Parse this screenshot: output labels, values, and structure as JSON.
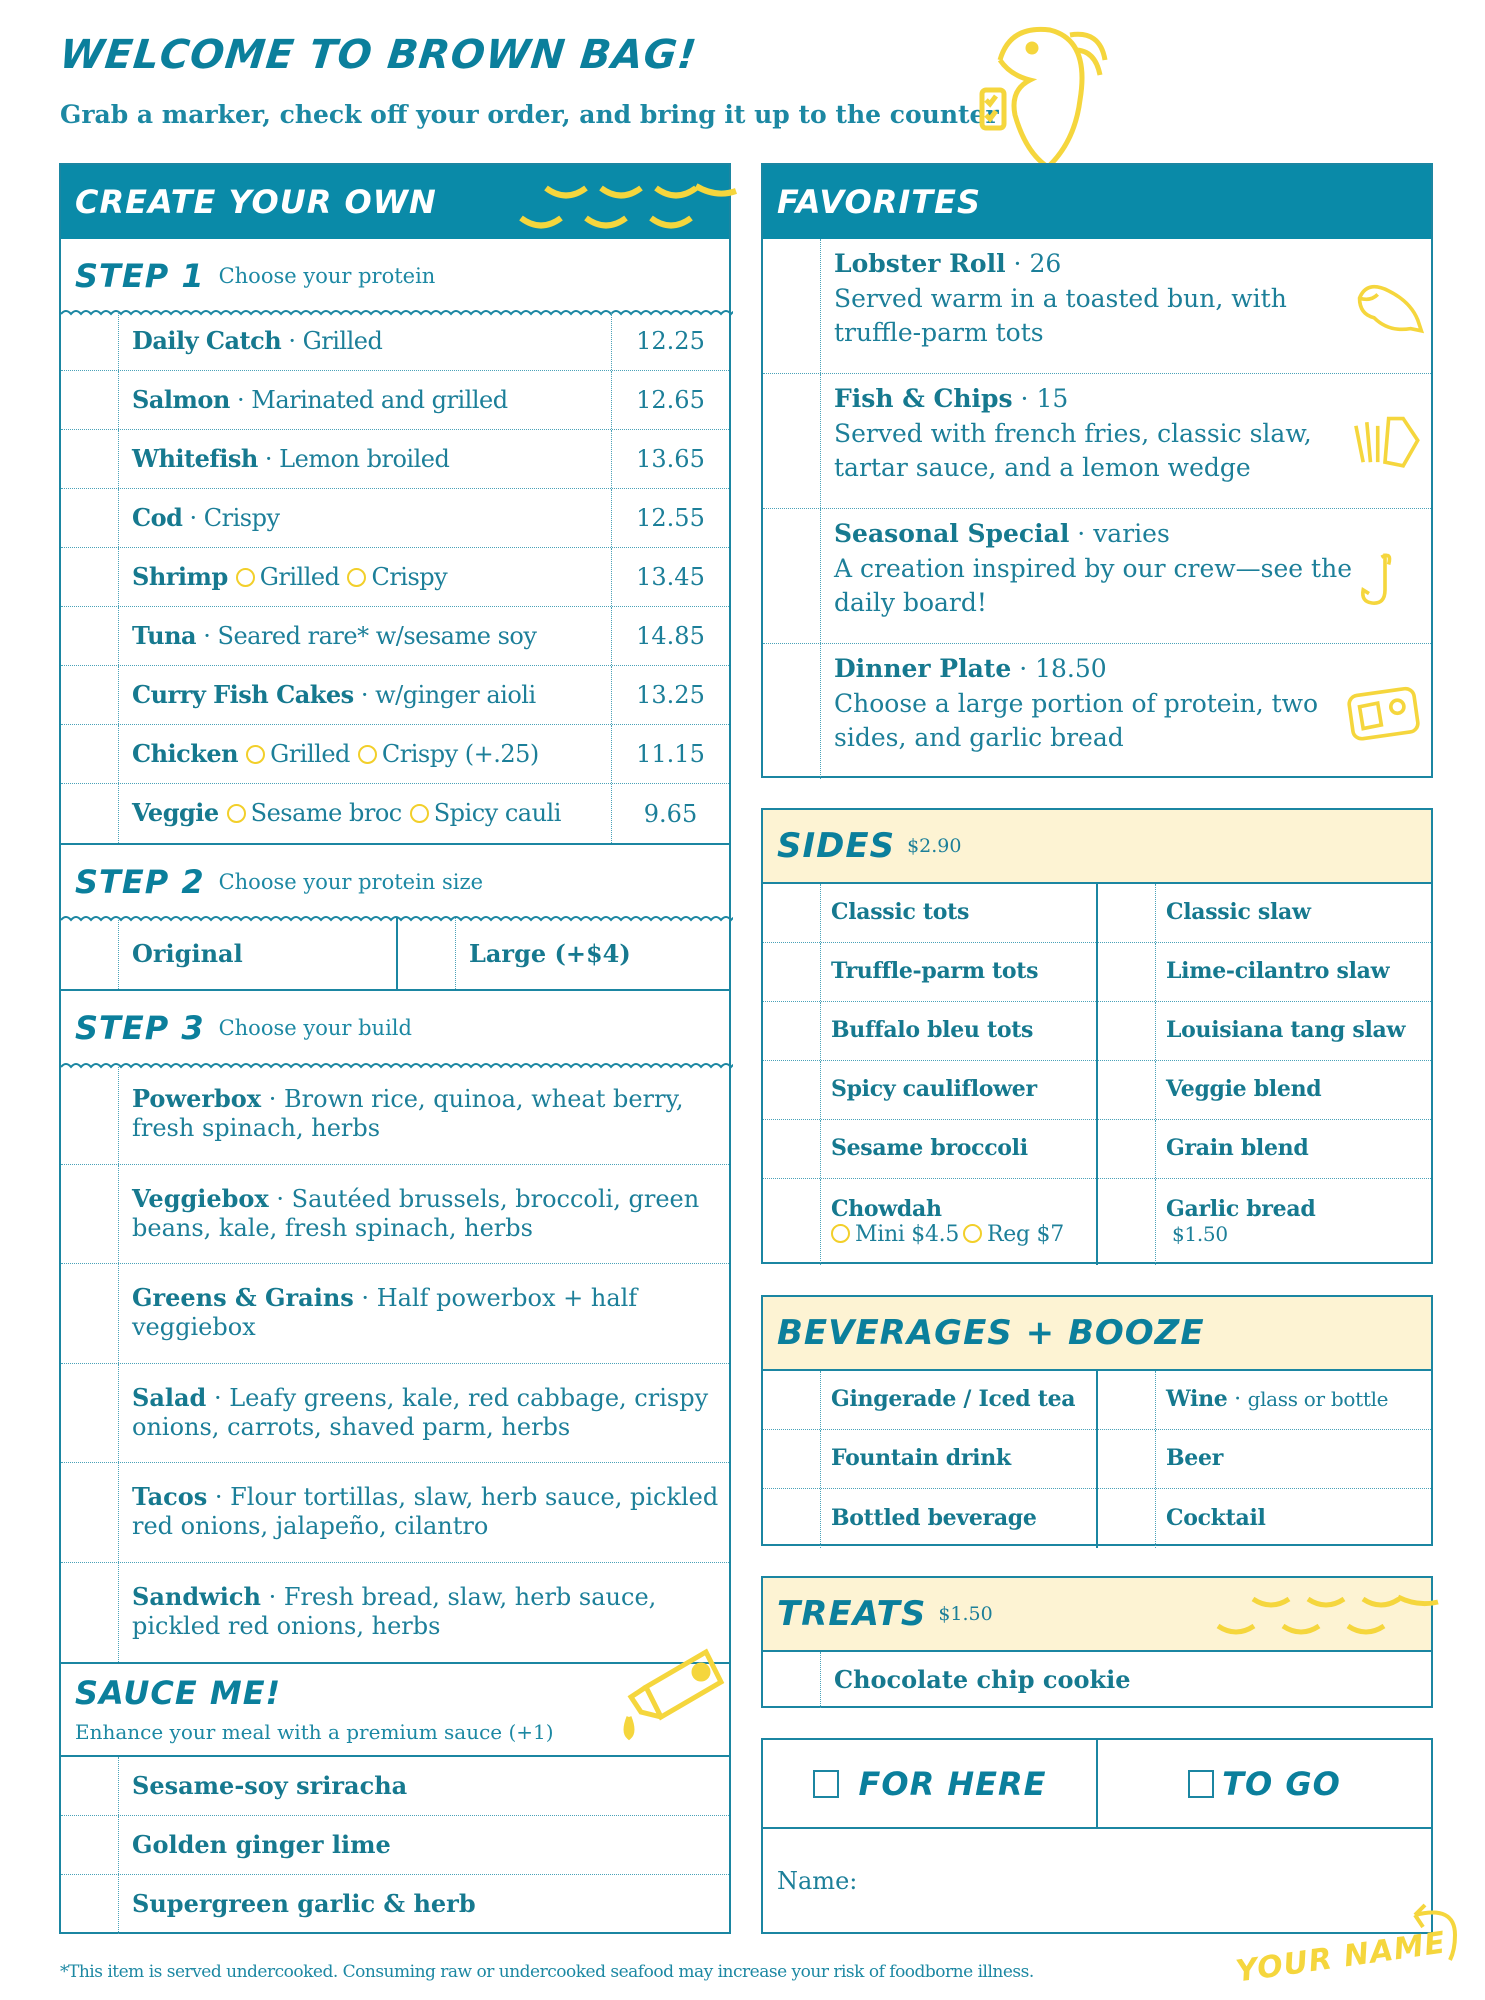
{
  "header": {
    "title": "Welcome to Brown Bag!",
    "subtitle": "Grab a marker, check off your order, and bring it up to the counter!"
  },
  "colors": {
    "teal": "#0a8aa8",
    "yellow": "#f5d63d",
    "cream": "#fdf3d3"
  },
  "create": {
    "title": "Create your own",
    "step1": {
      "label": "Step 1",
      "sub": "Choose your protein",
      "items": [
        {
          "name": "Daily Catch",
          "desc": "Grilled",
          "options": [],
          "price": "12.25"
        },
        {
          "name": "Salmon",
          "desc": "Marinated and grilled",
          "options": [],
          "price": "12.65"
        },
        {
          "name": "Whitefish",
          "desc": "Lemon broiled",
          "options": [],
          "price": "13.65"
        },
        {
          "name": "Cod",
          "desc": "Crispy",
          "options": [],
          "price": "12.55"
        },
        {
          "name": "Shrimp",
          "desc": "",
          "options": [
            "Grilled",
            "Crispy"
          ],
          "price": "13.45"
        },
        {
          "name": "Tuna",
          "desc": "Seared rare* w/sesame soy",
          "options": [],
          "price": "14.85"
        },
        {
          "name": "Curry Fish Cakes",
          "desc": "w/ginger aioli",
          "options": [],
          "price": "13.25"
        },
        {
          "name": "Chicken",
          "desc": "",
          "options": [
            "Grilled",
            "Crispy (+.25)"
          ],
          "price": "11.15"
        },
        {
          "name": "Veggie",
          "desc": "",
          "options": [
            "Sesame broc",
            "Spicy cauli"
          ],
          "price": "9.65"
        }
      ]
    },
    "step2": {
      "label": "Step 2",
      "sub": "Choose your protein size",
      "options": [
        "Original",
        "Large (+$4)"
      ]
    },
    "step3": {
      "label": "Step 3",
      "sub": "Choose your build",
      "items": [
        {
          "name": "Powerbox",
          "desc": "Brown rice, quinoa, wheat berry, fresh spinach, herbs"
        },
        {
          "name": "Veggiebox",
          "desc": "Sautéed brussels, broccoli, green beans, kale, fresh spinach, herbs"
        },
        {
          "name": "Greens & Grains",
          "desc": "Half powerbox + half veggiebox"
        },
        {
          "name": "Salad",
          "desc": "Leafy greens, kale, red cabbage, crispy onions, carrots, shaved parm, herbs"
        },
        {
          "name": "Tacos",
          "desc": "Flour tortillas, slaw, herb sauce, pickled red onions, jalapeño, cilantro"
        },
        {
          "name": "Sandwich",
          "desc": "Fresh bread, slaw, herb sauce, pickled red onions, herbs"
        }
      ]
    },
    "sauce": {
      "title": "Sauce me!",
      "sub": "Enhance your meal with a premium sauce (+1)",
      "items": [
        "Sesame-soy sriracha",
        "Golden ginger lime",
        "Supergreen garlic & herb"
      ]
    }
  },
  "favorites": {
    "title": "Favorites",
    "items": [
      {
        "name": "Lobster Roll",
        "price": "26",
        "desc": "Served warm in a toasted bun, with truffle-parm tots",
        "icon": "lobster-icon"
      },
      {
        "name": "Fish & Chips",
        "price": "15",
        "desc": "Served with french fries, classic slaw, tartar sauce, and a lemon wedge",
        "icon": "fries-icon"
      },
      {
        "name": "Seasonal Special",
        "price": "varies",
        "desc": "A creation inspired by our crew—see the daily board!",
        "icon": "fish-hook-icon"
      },
      {
        "name": "Dinner Plate",
        "price": "18.50",
        "desc": "Choose a large portion of protein, two sides, and garlic bread",
        "icon": "plate-icon"
      }
    ]
  },
  "sides": {
    "title": "Sides",
    "price": "$2.90",
    "left": [
      "Classic tots",
      "Truffle-parm tots",
      "Buffalo bleu tots",
      "Spicy cauliflower",
      "Sesame broccoli",
      "Chowdah"
    ],
    "right": [
      "Classic slaw",
      "Lime-cilantro slaw",
      "Louisiana tang slaw",
      "Veggie blend",
      "Grain blend",
      "Garlic bread"
    ],
    "chowdah_options": [
      "Mini $4.5",
      "Reg $7"
    ],
    "garlic_price": "$1.50"
  },
  "beverages": {
    "title": "Beverages + Booze",
    "left": [
      "Gingerade / Iced tea",
      "Fountain drink",
      "Bottled beverage"
    ],
    "right": [
      "Wine",
      "Beer",
      "Cocktail"
    ],
    "wine_note": "glass or bottle"
  },
  "treats": {
    "title": "Treats",
    "price": "$1.50",
    "items": [
      "Chocolate chip cookie"
    ]
  },
  "order": {
    "for_here": "For here",
    "to_go": "To go",
    "name_label": "Name:",
    "your_name": "Your name"
  },
  "footnote": "*This item is served undercooked. Consuming raw or undercooked seafood may increase your risk of foodborne illness."
}
